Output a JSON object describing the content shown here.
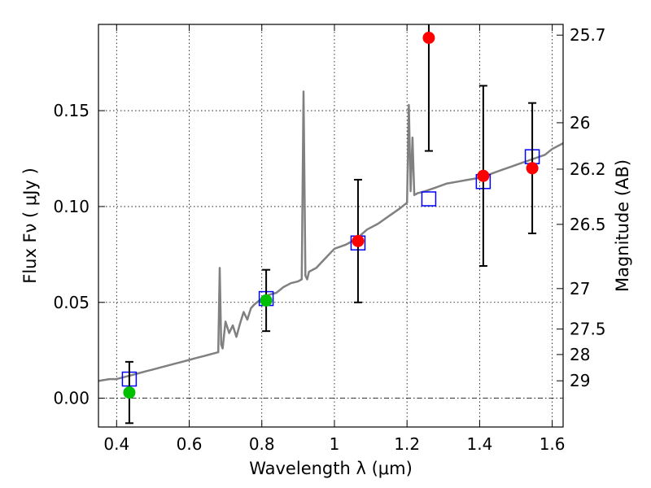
{
  "chart_data": {
    "type": "scatter",
    "xlabel": "Wavelength  λ (μm)",
    "ylabel_left": "Flux  Fν ( μJy )",
    "ylabel_right": "Magnitude (AB)",
    "xlim": [
      0.35,
      1.63
    ],
    "ylim": [
      -0.015,
      0.195
    ],
    "grid": true,
    "x_ticks": [
      0.4,
      0.6,
      0.8,
      1.0,
      1.2,
      1.4,
      1.6
    ],
    "x_tick_labels": [
      "0.4",
      "0.6",
      "0.8",
      "1",
      "1.2",
      "1.4",
      "1.6"
    ],
    "y_ticks": [
      0.0,
      0.05,
      0.1,
      0.15
    ],
    "y_tick_labels": [
      "0.00",
      "0.05",
      "0.10",
      "0.15"
    ],
    "right_ticks": [
      {
        "label": "25.7",
        "flux": 0.1894
      },
      {
        "label": "26",
        "flux": 0.1437
      },
      {
        "label": "26.2",
        "flux": 0.1195
      },
      {
        "label": "26.5",
        "flux": 0.0907
      },
      {
        "label": "27",
        "flux": 0.0572
      },
      {
        "label": "27.5",
        "flux": 0.0361
      },
      {
        "label": "28",
        "flux": 0.0228
      },
      {
        "label": "29",
        "flux": 0.0091
      }
    ],
    "model_spectrum": {
      "color": "#808080",
      "x": [
        0.35,
        0.38,
        0.4,
        0.42,
        0.44,
        0.46,
        0.48,
        0.5,
        0.52,
        0.54,
        0.56,
        0.58,
        0.6,
        0.62,
        0.64,
        0.66,
        0.68,
        0.684,
        0.688,
        0.692,
        0.7,
        0.71,
        0.72,
        0.73,
        0.74,
        0.75,
        0.76,
        0.77,
        0.78,
        0.8,
        0.82,
        0.84,
        0.86,
        0.88,
        0.9,
        0.91,
        0.915,
        0.92,
        0.925,
        0.93,
        0.95,
        0.97,
        1.0,
        1.03,
        1.06,
        1.09,
        1.12,
        1.15,
        1.18,
        1.2,
        1.205,
        1.21,
        1.215,
        1.22,
        1.23,
        1.25,
        1.28,
        1.31,
        1.34,
        1.37,
        1.4,
        1.43,
        1.46,
        1.49,
        1.52,
        1.55,
        1.58,
        1.6,
        1.63
      ],
      "y": [
        0.009,
        0.01,
        0.01,
        0.011,
        0.012,
        0.013,
        0.014,
        0.015,
        0.016,
        0.017,
        0.018,
        0.019,
        0.02,
        0.021,
        0.022,
        0.023,
        0.024,
        0.068,
        0.028,
        0.026,
        0.04,
        0.034,
        0.038,
        0.032,
        0.039,
        0.045,
        0.041,
        0.047,
        0.049,
        0.052,
        0.054,
        0.055,
        0.058,
        0.06,
        0.061,
        0.062,
        0.16,
        0.064,
        0.062,
        0.066,
        0.068,
        0.072,
        0.078,
        0.08,
        0.083,
        0.088,
        0.091,
        0.095,
        0.099,
        0.102,
        0.153,
        0.108,
        0.136,
        0.106,
        0.107,
        0.108,
        0.11,
        0.112,
        0.113,
        0.114,
        0.115,
        0.117,
        0.119,
        0.121,
        0.123,
        0.125,
        0.127,
        0.13,
        0.133
      ]
    },
    "model_photometry": {
      "marker": "open-square",
      "color": "#0000ff",
      "x": [
        0.435,
        0.812,
        1.065,
        1.26,
        1.41,
        1.545
      ],
      "y": [
        0.01,
        0.052,
        0.081,
        0.104,
        0.113,
        0.126
      ]
    },
    "observed": {
      "marker": "filled-circle",
      "points": [
        {
          "x": 0.435,
          "y": 0.003,
          "yerr": 0.016,
          "color": "#00c000"
        },
        {
          "x": 0.812,
          "y": 0.051,
          "yerr": 0.016,
          "color": "#00c000"
        },
        {
          "x": 1.065,
          "y": 0.082,
          "yerr": 0.032,
          "color": "#ff0000"
        },
        {
          "x": 1.26,
          "y": 0.188,
          "yerr": 0.059,
          "color": "#ff0000"
        },
        {
          "x": 1.41,
          "y": 0.116,
          "yerr": 0.047,
          "color": "#ff0000"
        },
        {
          "x": 1.545,
          "y": 0.12,
          "yerr": 0.034,
          "color": "#ff0000"
        }
      ]
    }
  }
}
